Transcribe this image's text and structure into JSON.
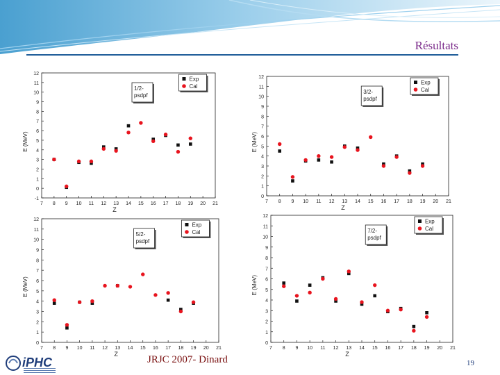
{
  "header": {
    "title": "Résultats"
  },
  "footer": {
    "text": "JRJC 2007- Dinard",
    "page": "19"
  },
  "logo": {
    "text": "iPHC"
  },
  "colors": {
    "exp": "#111111",
    "cal": "#e8141e",
    "title": "#7a2a8a",
    "banner": "#2a8fc8"
  },
  "chart_data": [
    {
      "type": "scatter",
      "annotation": "1/2-\npsdpf",
      "xlabel": "Z",
      "ylabel": "E (MeV)",
      "xlim": [
        7,
        21
      ],
      "ylim": [
        -1,
        12
      ],
      "xticks": [
        7,
        8,
        9,
        10,
        11,
        12,
        13,
        14,
        15,
        16,
        17,
        18,
        19,
        20,
        21
      ],
      "yticks": [
        -1,
        0,
        1,
        2,
        3,
        4,
        5,
        6,
        7,
        8,
        9,
        10,
        11,
        12
      ],
      "legend": [
        "Exp",
        "Cal"
      ],
      "legend_position": "top-right",
      "series": [
        {
          "name": "Exp",
          "marker": "square",
          "x": [
            8,
            9,
            10,
            11,
            12,
            13,
            14,
            16,
            17,
            18,
            19
          ],
          "y": [
            3.0,
            0.1,
            2.7,
            2.6,
            4.3,
            4.1,
            6.5,
            5.1,
            5.5,
            4.5,
            4.6
          ]
        },
        {
          "name": "Cal",
          "marker": "circle",
          "x": [
            8,
            9,
            10,
            11,
            12,
            13,
            14,
            15,
            16,
            17,
            18,
            19
          ],
          "y": [
            3.0,
            0.2,
            2.8,
            2.8,
            4.1,
            3.9,
            5.8,
            6.8,
            4.9,
            5.6,
            3.8,
            5.2
          ]
        }
      ]
    },
    {
      "type": "scatter",
      "annotation": "3/2-\npsdpf",
      "xlabel": "Z",
      "ylabel": "E (MeV)",
      "xlim": [
        7,
        21
      ],
      "ylim": [
        0,
        12
      ],
      "xticks": [
        7,
        8,
        9,
        10,
        11,
        12,
        13,
        14,
        15,
        16,
        17,
        18,
        19,
        20,
        21
      ],
      "yticks": [
        0,
        1,
        2,
        3,
        4,
        5,
        6,
        7,
        8,
        9,
        10,
        11,
        12
      ],
      "legend": [
        "Exp",
        "Cal"
      ],
      "legend_position": "top-right",
      "series": [
        {
          "name": "Exp",
          "marker": "square",
          "x": [
            8,
            9,
            10,
            11,
            12,
            13,
            14,
            16,
            17,
            18,
            19
          ],
          "y": [
            4.5,
            1.5,
            3.5,
            3.6,
            3.4,
            5.0,
            4.8,
            3.2,
            4.0,
            2.5,
            3.2
          ]
        },
        {
          "name": "Cal",
          "marker": "circle",
          "x": [
            8,
            9,
            10,
            11,
            12,
            13,
            14,
            15,
            16,
            17,
            18,
            19
          ],
          "y": [
            5.2,
            1.9,
            3.6,
            4.0,
            3.9,
            4.9,
            4.6,
            5.9,
            3.0,
            3.9,
            2.3,
            3.0
          ]
        }
      ]
    },
    {
      "type": "scatter",
      "annotation": "5/2-\npsdpf",
      "xlabel": "Z",
      "ylabel": "E (MeV)",
      "xlim": [
        7,
        21
      ],
      "ylim": [
        0,
        12
      ],
      "xticks": [
        7,
        8,
        9,
        10,
        11,
        12,
        13,
        14,
        15,
        16,
        17,
        18,
        19,
        20,
        21
      ],
      "yticks": [
        0,
        1,
        2,
        3,
        4,
        5,
        6,
        7,
        8,
        9,
        10,
        11,
        12
      ],
      "legend": [
        "Exp",
        "Cal"
      ],
      "legend_position": "top-right",
      "series": [
        {
          "name": "Exp",
          "marker": "square",
          "x": [
            8,
            9,
            10,
            11,
            13,
            17,
            18,
            19
          ],
          "y": [
            3.8,
            1.4,
            3.9,
            3.8,
            5.5,
            4.1,
            3.2,
            3.8
          ]
        },
        {
          "name": "Cal",
          "marker": "circle",
          "x": [
            8,
            9,
            10,
            11,
            12,
            13,
            14,
            15,
            16,
            17,
            18,
            19
          ],
          "y": [
            4.1,
            1.7,
            3.9,
            4.0,
            5.5,
            5.5,
            5.4,
            6.6,
            4.6,
            4.8,
            3.0,
            3.9
          ]
        }
      ]
    },
    {
      "type": "scatter",
      "annotation": "7/2-\npsdpf",
      "xlabel": "Z",
      "ylabel": "E (MeV)",
      "xlim": [
        7,
        21
      ],
      "ylim": [
        0,
        12
      ],
      "xticks": [
        7,
        8,
        9,
        10,
        11,
        12,
        13,
        14,
        15,
        16,
        17,
        18,
        19,
        20,
        21
      ],
      "yticks": [
        0,
        1,
        2,
        3,
        4,
        5,
        6,
        7,
        8,
        9,
        10,
        11,
        12
      ],
      "legend": [
        "Exp",
        "Cal"
      ],
      "legend_position": "top-right",
      "series": [
        {
          "name": "Exp",
          "marker": "square",
          "x": [
            8,
            9,
            10,
            11,
            12,
            13,
            14,
            15,
            16,
            17,
            18,
            19
          ],
          "y": [
            5.6,
            3.9,
            5.4,
            6.1,
            3.9,
            6.5,
            3.6,
            4.4,
            2.9,
            3.2,
            1.5,
            2.8
          ]
        },
        {
          "name": "Cal",
          "marker": "circle",
          "x": [
            8,
            9,
            10,
            11,
            12,
            13,
            14,
            15,
            16,
            17,
            18,
            19
          ],
          "y": [
            5.3,
            4.4,
            4.7,
            6.0,
            4.1,
            6.7,
            3.8,
            5.4,
            3.0,
            3.1,
            1.1,
            2.4
          ]
        }
      ]
    }
  ]
}
